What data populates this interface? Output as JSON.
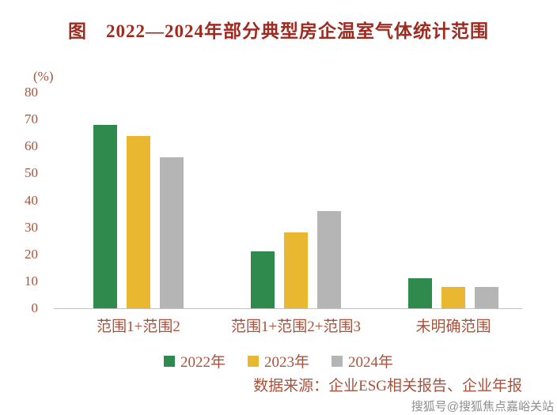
{
  "page": {
    "title": "图　2022—2024年部分典型房企温室气体统计范围",
    "source_note": "数据来源：企业ESG相关报告、企业年报",
    "watermark": "搜狐号@搜狐焦点嘉峪关站"
  },
  "chart_data": {
    "type": "bar",
    "title": "图 2022—2024年部分典型房企温室气体统计范围",
    "ylabel": "(%)",
    "xlabel": "",
    "ylim": [
      0,
      80
    ],
    "yticks": [
      0,
      10,
      20,
      30,
      40,
      50,
      60,
      70,
      80
    ],
    "grid": false,
    "legend_position": "bottom",
    "categories": [
      "范围1+范围2",
      "范围1+范围2+范围3",
      "未明确范围"
    ],
    "series": [
      {
        "name": "2022年",
        "color": "#2f8a4d",
        "values": [
          68,
          21,
          11
        ]
      },
      {
        "name": "2023年",
        "color": "#eab830",
        "values": [
          64,
          28,
          8
        ]
      },
      {
        "name": "2024年",
        "color": "#b5b5b5",
        "values": [
          56,
          36,
          8
        ]
      }
    ],
    "source_note": "数据来源：企业ESG相关报告、企业年报"
  }
}
